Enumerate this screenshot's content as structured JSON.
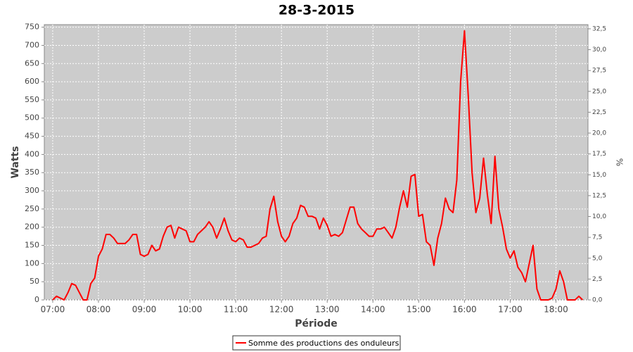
{
  "chart_data": {
    "type": "line",
    "title": "28-3-2015",
    "x_label": "Période",
    "y_label": "Watts",
    "y2_label": "%",
    "x": [
      "07:00",
      "07:05",
      "07:10",
      "07:15",
      "07:20",
      "07:25",
      "07:30",
      "07:35",
      "07:40",
      "07:45",
      "07:50",
      "07:55",
      "08:00",
      "08:05",
      "08:10",
      "08:15",
      "08:20",
      "08:25",
      "08:30",
      "08:35",
      "08:40",
      "08:45",
      "08:50",
      "08:55",
      "09:00",
      "09:05",
      "09:10",
      "09:15",
      "09:20",
      "09:25",
      "09:30",
      "09:35",
      "09:40",
      "09:45",
      "09:50",
      "09:55",
      "10:00",
      "10:05",
      "10:10",
      "10:15",
      "10:20",
      "10:25",
      "10:30",
      "10:35",
      "10:40",
      "10:45",
      "10:50",
      "10:55",
      "11:00",
      "11:05",
      "11:10",
      "11:15",
      "11:20",
      "11:25",
      "11:30",
      "11:35",
      "11:40",
      "11:45",
      "11:50",
      "11:55",
      "12:00",
      "12:05",
      "12:10",
      "12:15",
      "12:20",
      "12:25",
      "12:30",
      "12:35",
      "12:40",
      "12:45",
      "12:50",
      "12:55",
      "13:00",
      "13:05",
      "13:10",
      "13:15",
      "13:20",
      "13:25",
      "13:30",
      "13:35",
      "13:40",
      "13:45",
      "13:50",
      "13:55",
      "14:00",
      "14:05",
      "14:10",
      "14:15",
      "14:20",
      "14:25",
      "14:30",
      "14:35",
      "14:40",
      "14:45",
      "14:50",
      "14:55",
      "15:00",
      "15:05",
      "15:10",
      "15:15",
      "15:20",
      "15:25",
      "15:30",
      "15:35",
      "15:40",
      "15:45",
      "15:50",
      "15:55",
      "16:00",
      "16:05",
      "16:10",
      "16:15",
      "16:20",
      "16:25",
      "16:30",
      "16:35",
      "16:40",
      "16:45",
      "16:50",
      "16:55",
      "17:00",
      "17:05",
      "17:10",
      "17:15",
      "17:20",
      "17:25",
      "17:30",
      "17:35",
      "17:40",
      "17:45",
      "17:50",
      "17:55",
      "18:00",
      "18:05",
      "18:10",
      "18:15",
      "18:20",
      "18:25",
      "18:30",
      "18:35"
    ],
    "series": [
      {
        "name": "Somme des productions des onduleurs",
        "color": "#ff0000",
        "values": [
          0,
          10,
          5,
          0,
          20,
          45,
          40,
          20,
          0,
          0,
          45,
          60,
          120,
          140,
          180,
          180,
          170,
          155,
          155,
          155,
          165,
          180,
          180,
          125,
          120,
          125,
          150,
          135,
          140,
          175,
          200,
          205,
          170,
          200,
          195,
          190,
          160,
          160,
          180,
          190,
          200,
          215,
          200,
          170,
          195,
          225,
          190,
          165,
          160,
          170,
          165,
          145,
          145,
          150,
          155,
          170,
          175,
          250,
          285,
          215,
          175,
          160,
          175,
          210,
          225,
          260,
          255,
          230,
          230,
          225,
          195,
          225,
          205,
          175,
          180,
          175,
          185,
          220,
          255,
          255,
          210,
          195,
          185,
          175,
          175,
          195,
          195,
          200,
          185,
          170,
          200,
          255,
          300,
          255,
          340,
          345,
          230,
          235,
          160,
          150,
          95,
          170,
          210,
          280,
          250,
          240,
          330,
          600,
          740,
          560,
          350,
          240,
          280,
          390,
          290,
          210,
          395,
          250,
          200,
          140,
          115,
          135,
          90,
          75,
          50,
          100,
          150,
          30,
          0,
          0,
          0,
          5,
          30,
          80,
          50,
          0,
          0,
          0,
          10,
          0
        ]
      }
    ],
    "xlim": [
      "06:49",
      "18:42"
    ],
    "xticks": [
      "07:00",
      "08:00",
      "09:00",
      "10:00",
      "11:00",
      "12:00",
      "13:00",
      "14:00",
      "15:00",
      "16:00",
      "17:00",
      "18:00"
    ],
    "ylim": [
      0,
      757
    ],
    "yticks": [
      0,
      50,
      100,
      150,
      200,
      250,
      300,
      350,
      400,
      450,
      500,
      550,
      600,
      650,
      700,
      750
    ],
    "y2lim": [
      0,
      33.0
    ],
    "y2ticks": [
      {
        "value": 0,
        "label": "0,0"
      },
      {
        "value": 2.5,
        "label": "2,5"
      },
      {
        "value": 5,
        "label": "5,0"
      },
      {
        "value": 7.5,
        "label": "7,5"
      },
      {
        "value": 10,
        "label": "10,0"
      },
      {
        "value": 12.5,
        "label": "12,5"
      },
      {
        "value": 15,
        "label": "15,0"
      },
      {
        "value": 17.5,
        "label": "17,5"
      },
      {
        "value": 20,
        "label": "20,0"
      },
      {
        "value": 22.5,
        "label": "22,5"
      },
      {
        "value": 25,
        "label": "25,0"
      },
      {
        "value": 27.5,
        "label": "27,5"
      },
      {
        "value": 30,
        "label": "30,0"
      },
      {
        "value": 32.5,
        "label": "32,5"
      }
    ],
    "grid": true,
    "background": "#cccccc",
    "legend": "bottom"
  }
}
